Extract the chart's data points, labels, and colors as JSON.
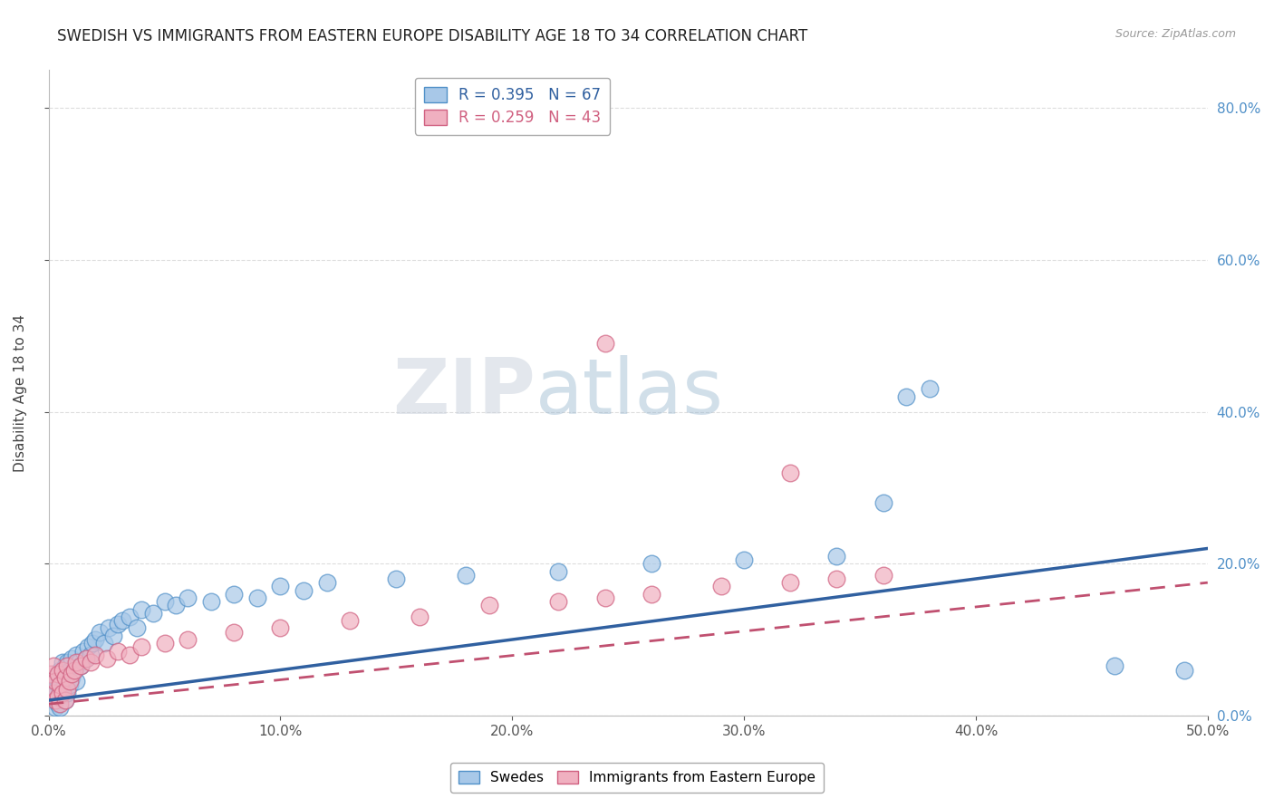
{
  "title": "SWEDISH VS IMMIGRANTS FROM EASTERN EUROPE DISABILITY AGE 18 TO 34 CORRELATION CHART",
  "source": "Source: ZipAtlas.com",
  "ylabel": "Disability Age 18 to 34",
  "legend_label1": "Swedes",
  "legend_label2": "Immigrants from Eastern Europe",
  "r1": 0.395,
  "n1": 67,
  "r2": 0.259,
  "n2": 43,
  "color_blue_fill": "#a8c8e8",
  "color_blue_edge": "#5090c8",
  "color_pink_fill": "#f0b0c0",
  "color_pink_edge": "#d06080",
  "color_blue_line": "#3060a0",
  "color_pink_line": "#c05070",
  "background_color": "#ffffff",
  "grid_color": "#dddddd",
  "watermark_color": "#c8d8e8",
  "swedes_x": [
    0.001,
    0.002,
    0.002,
    0.003,
    0.003,
    0.003,
    0.004,
    0.004,
    0.004,
    0.005,
    0.005,
    0.005,
    0.005,
    0.006,
    0.006,
    0.006,
    0.007,
    0.007,
    0.007,
    0.008,
    0.008,
    0.008,
    0.009,
    0.009,
    0.01,
    0.01,
    0.011,
    0.012,
    0.012,
    0.013,
    0.014,
    0.015,
    0.016,
    0.017,
    0.018,
    0.019,
    0.02,
    0.022,
    0.024,
    0.026,
    0.028,
    0.03,
    0.032,
    0.035,
    0.038,
    0.04,
    0.045,
    0.05,
    0.055,
    0.06,
    0.07,
    0.08,
    0.09,
    0.1,
    0.11,
    0.12,
    0.15,
    0.18,
    0.22,
    0.26,
    0.3,
    0.34,
    0.36,
    0.37,
    0.38,
    0.46,
    0.49
  ],
  "swedes_y": [
    0.035,
    0.02,
    0.045,
    0.01,
    0.03,
    0.05,
    0.015,
    0.04,
    0.055,
    0.025,
    0.045,
    0.06,
    0.01,
    0.035,
    0.055,
    0.07,
    0.02,
    0.05,
    0.065,
    0.03,
    0.055,
    0.07,
    0.04,
    0.06,
    0.05,
    0.075,
    0.06,
    0.045,
    0.08,
    0.07,
    0.065,
    0.085,
    0.075,
    0.09,
    0.08,
    0.095,
    0.1,
    0.11,
    0.095,
    0.115,
    0.105,
    0.12,
    0.125,
    0.13,
    0.115,
    0.14,
    0.135,
    0.15,
    0.145,
    0.155,
    0.15,
    0.16,
    0.155,
    0.17,
    0.165,
    0.175,
    0.18,
    0.185,
    0.19,
    0.2,
    0.205,
    0.21,
    0.28,
    0.42,
    0.43,
    0.065,
    0.06
  ],
  "immigrants_x": [
    0.001,
    0.002,
    0.002,
    0.003,
    0.003,
    0.004,
    0.004,
    0.005,
    0.005,
    0.006,
    0.006,
    0.007,
    0.007,
    0.008,
    0.008,
    0.009,
    0.01,
    0.011,
    0.012,
    0.014,
    0.016,
    0.018,
    0.02,
    0.025,
    0.03,
    0.035,
    0.04,
    0.05,
    0.06,
    0.08,
    0.1,
    0.13,
    0.16,
    0.19,
    0.22,
    0.24,
    0.26,
    0.29,
    0.32,
    0.34,
    0.36,
    0.24,
    0.32
  ],
  "immigrants_y": [
    0.055,
    0.03,
    0.065,
    0.02,
    0.045,
    0.025,
    0.055,
    0.015,
    0.04,
    0.03,
    0.06,
    0.02,
    0.05,
    0.035,
    0.065,
    0.045,
    0.055,
    0.06,
    0.07,
    0.065,
    0.075,
    0.07,
    0.08,
    0.075,
    0.085,
    0.08,
    0.09,
    0.095,
    0.1,
    0.11,
    0.115,
    0.125,
    0.13,
    0.145,
    0.15,
    0.155,
    0.16,
    0.17,
    0.175,
    0.18,
    0.185,
    0.49,
    0.32
  ],
  "blue_trend_start_y": 0.02,
  "blue_trend_end_y": 0.22,
  "pink_trend_start_y": 0.015,
  "pink_trend_end_y": 0.175,
  "ylim": [
    0.0,
    0.85
  ],
  "xlim": [
    0.0,
    0.5
  ],
  "yticks": [
    0.0,
    0.2,
    0.4,
    0.6,
    0.8
  ],
  "xticks": [
    0.0,
    0.1,
    0.2,
    0.3,
    0.4,
    0.5
  ]
}
